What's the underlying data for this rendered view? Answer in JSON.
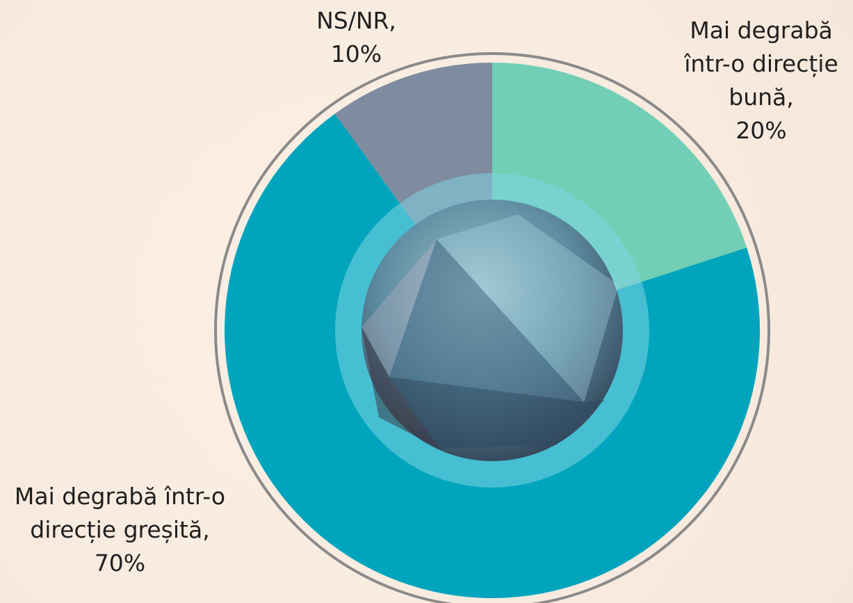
{
  "chart_data": {
    "type": "pie",
    "categories": [
      "Mai degrabă într-o direcție bună,",
      "Mai degrabă într-o direcție greșită,",
      "NS/NR,"
    ],
    "values": [
      20,
      70,
      10
    ],
    "value_labels": [
      "20%",
      "70%",
      "10%"
    ],
    "colors": [
      "#72cfb5",
      "#00a5bd",
      "#7f8b9e"
    ],
    "start_angle": 0,
    "direction": "clockwise"
  }
}
